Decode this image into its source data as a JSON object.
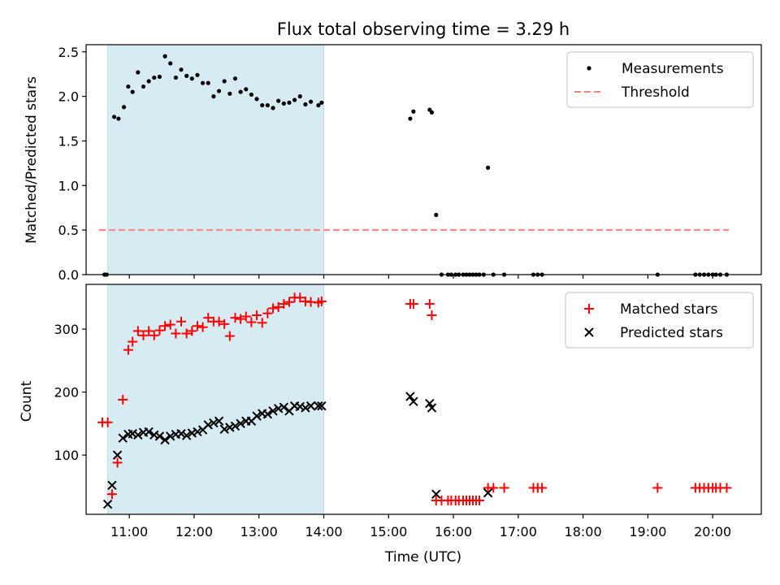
{
  "title": "Flux total observing time = 3.29 h",
  "chart_data": [
    {
      "type": "scatter",
      "ylabel": "Matched/Predicted stars",
      "xlim": [
        "10:20",
        "20:45"
      ],
      "ylim": [
        0,
        2.58
      ],
      "yticks": [
        "0.0",
        "0.5",
        "1.0",
        "1.5",
        "2.0",
        "2.5"
      ],
      "shaded_interval": [
        "10:40",
        "14:00"
      ],
      "shade_color": "#add8e6",
      "legend_position": "upper right",
      "legend": [
        "Measurements",
        "Threshold"
      ],
      "threshold": {
        "name": "Threshold",
        "value": 0.5,
        "x": [
          "10:32",
          "20:15"
        ],
        "color": "#ff8080",
        "style": "dashed"
      },
      "series": [
        {
          "name": "Measurements",
          "color": "#000000",
          "points": [
            [
              "10:37",
              0
            ],
            [
              "10:39",
              0
            ],
            [
              "10:46",
              1.77
            ],
            [
              "10:50",
              1.75
            ],
            [
              "10:55",
              1.88
            ],
            [
              "10:59",
              2.11
            ],
            [
              "11:03",
              2.05
            ],
            [
              "11:08",
              2.27
            ],
            [
              "11:13",
              2.11
            ],
            [
              "11:18",
              2.17
            ],
            [
              "11:23",
              2.21
            ],
            [
              "11:28",
              2.22
            ],
            [
              "11:33",
              2.45
            ],
            [
              "11:38",
              2.37
            ],
            [
              "11:43",
              2.21
            ],
            [
              "11:48",
              2.3
            ],
            [
              "11:53",
              2.23
            ],
            [
              "11:58",
              2.2
            ],
            [
              "12:03",
              2.24
            ],
            [
              "12:08",
              2.15
            ],
            [
              "12:13",
              2.15
            ],
            [
              "12:18",
              2.0
            ],
            [
              "12:23",
              2.06
            ],
            [
              "12:28",
              2.17
            ],
            [
              "12:33",
              2.03
            ],
            [
              "12:38",
              2.2
            ],
            [
              "12:43",
              2.05
            ],
            [
              "12:48",
              2.08
            ],
            [
              "12:53",
              2.02
            ],
            [
              "12:58",
              1.97
            ],
            [
              "13:03",
              1.9
            ],
            [
              "13:08",
              1.9
            ],
            [
              "13:13",
              1.87
            ],
            [
              "13:18",
              1.95
            ],
            [
              "13:23",
              1.92
            ],
            [
              "13:28",
              1.93
            ],
            [
              "13:33",
              1.96
            ],
            [
              "13:38",
              2.0
            ],
            [
              "13:43",
              1.91
            ],
            [
              "13:48",
              1.94
            ],
            [
              "13:55",
              1.9
            ],
            [
              "13:58",
              1.93
            ],
            [
              "15:20",
              1.75
            ],
            [
              "15:23",
              1.83
            ],
            [
              "15:38",
              1.85
            ],
            [
              "15:40",
              1.82
            ],
            [
              "15:44",
              0.67
            ],
            [
              "15:49",
              0
            ],
            [
              "15:55",
              0
            ],
            [
              "15:58",
              0
            ],
            [
              "16:02",
              0
            ],
            [
              "16:05",
              0
            ],
            [
              "16:09",
              0
            ],
            [
              "16:12",
              0
            ],
            [
              "16:15",
              0
            ],
            [
              "16:18",
              0
            ],
            [
              "16:21",
              0
            ],
            [
              "16:24",
              0
            ],
            [
              "16:28",
              0
            ],
            [
              "16:32",
              1.2
            ],
            [
              "16:37",
              0
            ],
            [
              "16:47",
              0
            ],
            [
              "17:14",
              0
            ],
            [
              "17:18",
              0
            ],
            [
              "17:22",
              0
            ],
            [
              "19:09",
              0
            ],
            [
              "19:44",
              0
            ],
            [
              "19:48",
              0
            ],
            [
              "19:52",
              0
            ],
            [
              "19:56",
              0
            ],
            [
              "20:00",
              0
            ],
            [
              "20:03",
              0
            ],
            [
              "20:07",
              0
            ],
            [
              "20:13",
              0
            ]
          ]
        }
      ]
    },
    {
      "type": "scatter",
      "ylabel": "Count",
      "xlabel": "Time (UTC)",
      "xlim": [
        "10:20",
        "20:45"
      ],
      "ylim": [
        6,
        371
      ],
      "yticks": [
        "100",
        "200",
        "300"
      ],
      "xticks": [
        "11:00",
        "12:00",
        "13:00",
        "14:00",
        "15:00",
        "16:00",
        "17:00",
        "18:00",
        "19:00",
        "20:00"
      ],
      "shaded_interval": [
        "10:40",
        "14:00"
      ],
      "shade_color": "#add8e6",
      "legend_position": "upper right",
      "legend": [
        "Matched stars",
        "Predicted stars"
      ],
      "series": [
        {
          "name": "Matched stars",
          "marker": "+",
          "color": "#ff0000",
          "points": [
            [
              "10:35",
              152
            ],
            [
              "10:40",
              152
            ],
            [
              "10:44",
              38
            ],
            [
              "10:49",
              88
            ],
            [
              "10:54",
              188
            ],
            [
              "10:59",
              267
            ],
            [
              "11:03",
              280
            ],
            [
              "11:08",
              297
            ],
            [
              "11:13",
              290
            ],
            [
              "11:18",
              297
            ],
            [
              "11:23",
              290
            ],
            [
              "11:28",
              298
            ],
            [
              "11:33",
              305
            ],
            [
              "11:38",
              307
            ],
            [
              "11:43",
              293
            ],
            [
              "11:48",
              312
            ],
            [
              "11:53",
              293
            ],
            [
              "11:58",
              297
            ],
            [
              "12:03",
              305
            ],
            [
              "12:08",
              303
            ],
            [
              "12:13",
              318
            ],
            [
              "12:18",
              312
            ],
            [
              "12:23",
              312
            ],
            [
              "12:28",
              308
            ],
            [
              "12:33",
              289
            ],
            [
              "12:38",
              318
            ],
            [
              "12:43",
              316
            ],
            [
              "12:48",
              320
            ],
            [
              "12:53",
              311
            ],
            [
              "12:58",
              322
            ],
            [
              "13:03",
              310
            ],
            [
              "13:08",
              325
            ],
            [
              "13:13",
              333
            ],
            [
              "13:18",
              335
            ],
            [
              "13:23",
              340
            ],
            [
              "13:28",
              343
            ],
            [
              "13:33",
              350
            ],
            [
              "13:38",
              350
            ],
            [
              "13:43",
              344
            ],
            [
              "13:48",
              343
            ],
            [
              "13:55",
              342
            ],
            [
              "13:58",
              344
            ],
            [
              "15:20",
              340
            ],
            [
              "15:23",
              340
            ],
            [
              "15:38",
              340
            ],
            [
              "15:40",
              322
            ],
            [
              "15:44",
              28
            ],
            [
              "15:49",
              28
            ],
            [
              "15:55",
              28
            ],
            [
              "15:58",
              28
            ],
            [
              "16:02",
              28
            ],
            [
              "16:05",
              28
            ],
            [
              "16:09",
              28
            ],
            [
              "16:12",
              28
            ],
            [
              "16:15",
              28
            ],
            [
              "16:18",
              28
            ],
            [
              "16:21",
              28
            ],
            [
              "16:24",
              28
            ],
            [
              "16:32",
              48
            ],
            [
              "16:37",
              48
            ],
            [
              "16:47",
              48
            ],
            [
              "17:14",
              48
            ],
            [
              "17:18",
              48
            ],
            [
              "17:22",
              48
            ],
            [
              "19:09",
              48
            ],
            [
              "19:44",
              48
            ],
            [
              "19:48",
              48
            ],
            [
              "19:52",
              48
            ],
            [
              "19:56",
              48
            ],
            [
              "20:00",
              48
            ],
            [
              "20:03",
              48
            ],
            [
              "20:07",
              48
            ],
            [
              "20:13",
              48
            ]
          ]
        },
        {
          "name": "Predicted stars",
          "marker": "x",
          "color": "#000000",
          "points": [
            [
              "10:40",
              22
            ],
            [
              "10:44",
              52
            ],
            [
              "10:49",
              100
            ],
            [
              "10:54",
              127
            ],
            [
              "10:59",
              133
            ],
            [
              "11:03",
              134
            ],
            [
              "11:08",
              132
            ],
            [
              "11:13",
              136
            ],
            [
              "11:18",
              137
            ],
            [
              "11:23",
              132
            ],
            [
              "11:28",
              130
            ],
            [
              "11:33",
              124
            ],
            [
              "11:38",
              130
            ],
            [
              "11:43",
              133
            ],
            [
              "11:48",
              134
            ],
            [
              "11:53",
              131
            ],
            [
              "11:58",
              135
            ],
            [
              "12:03",
              137
            ],
            [
              "12:08",
              140
            ],
            [
              "12:13",
              148
            ],
            [
              "12:18",
              151
            ],
            [
              "12:23",
              154
            ],
            [
              "12:28",
              141
            ],
            [
              "12:33",
              144
            ],
            [
              "12:38",
              146
            ],
            [
              "12:43",
              150
            ],
            [
              "12:48",
              154
            ],
            [
              "12:53",
              154
            ],
            [
              "12:58",
              162
            ],
            [
              "13:03",
              166
            ],
            [
              "13:08",
              165
            ],
            [
              "13:13",
              170
            ],
            [
              "13:18",
              174
            ],
            [
              "13:23",
              176
            ],
            [
              "13:28",
              170
            ],
            [
              "13:33",
              178
            ],
            [
              "13:38",
              177
            ],
            [
              "13:43",
              175
            ],
            [
              "13:48",
              178
            ],
            [
              "13:55",
              178
            ],
            [
              "13:58",
              178
            ],
            [
              "15:20",
              193
            ],
            [
              "15:23",
              185
            ],
            [
              "15:38",
              182
            ],
            [
              "15:40",
              175
            ],
            [
              "15:44",
              38
            ],
            [
              "16:32",
              40
            ]
          ]
        }
      ]
    }
  ]
}
